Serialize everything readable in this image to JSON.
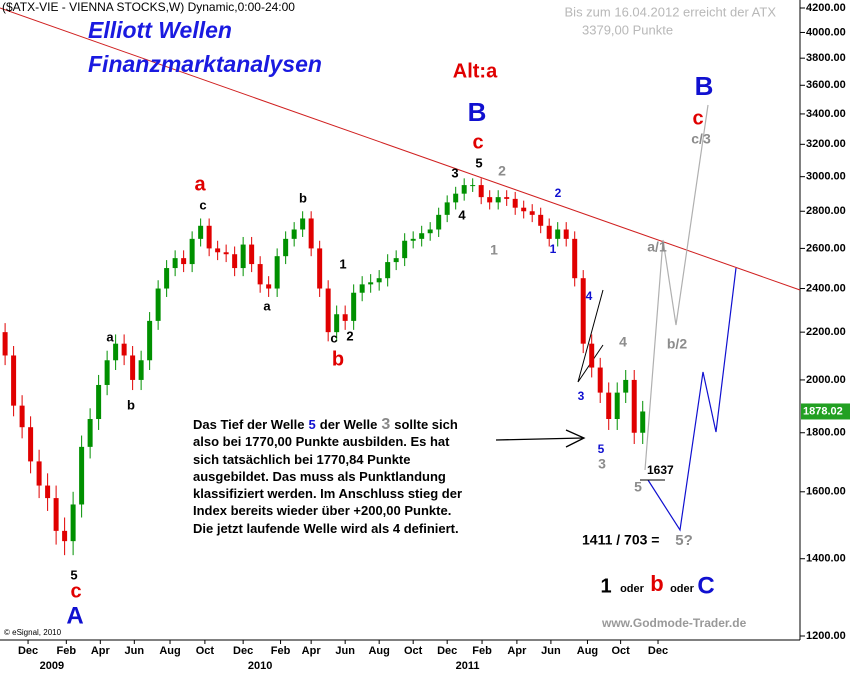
{
  "chart_data": {
    "type": "candlestick",
    "title": "($ATX-VIE - VIENNA STOCKS,W) Dynamic,0:00-24:00",
    "brand": [
      "Elliott Wellen",
      "Finanzmarktanalysen"
    ],
    "forecast_note": [
      "Bis zum 16.04.2012 erreicht der ATX",
      "3379,00 Punkte"
    ],
    "open": [
      2200,
      2100,
      1900,
      1820,
      1700,
      1620,
      1580,
      1480,
      1450,
      1560,
      1750,
      1850,
      1980,
      2080,
      2150,
      2100,
      2000,
      2080,
      2250,
      2400,
      2500,
      2550,
      2520,
      2650,
      2720,
      2600,
      2580,
      2570,
      2500,
      2620,
      2520,
      2420,
      2400,
      2560,
      2650,
      2700,
      2760,
      2600,
      2400,
      2200,
      2280,
      2250,
      2380,
      2420,
      2430,
      2450,
      2530,
      2550,
      2640,
      2650,
      2680,
      2700,
      2780,
      2850,
      2900,
      2950,
      2950,
      2880,
      2850,
      2880,
      2870,
      2820,
      2800,
      2780,
      2720,
      2650,
      2700,
      2650,
      2450,
      2150,
      2050,
      1950,
      1850,
      1950,
      2000,
      1800
    ],
    "high": [
      2240,
      2140,
      1940,
      1860,
      1740,
      1660,
      1620,
      1520,
      1600,
      1790,
      1890,
      2020,
      2120,
      2190,
      2190,
      2140,
      2120,
      2290,
      2440,
      2540,
      2590,
      2590,
      2690,
      2760,
      2760,
      2640,
      2620,
      2610,
      2660,
      2660,
      2560,
      2460,
      2600,
      2690,
      2740,
      2800,
      2800,
      2640,
      2440,
      2320,
      2320,
      2420,
      2460,
      2470,
      2490,
      2570,
      2590,
      2680,
      2690,
      2720,
      2740,
      2820,
      2890,
      2940,
      2990,
      2990,
      2990,
      2920,
      2920,
      2920,
      2910,
      2860,
      2840,
      2820,
      2760,
      2740,
      2740,
      2690,
      2490,
      2190,
      2090,
      1990,
      1990,
      2040,
      2040,
      1918
    ],
    "low": [
      2060,
      1860,
      1780,
      1660,
      1580,
      1540,
      1440,
      1410,
      1410,
      1520,
      1710,
      1810,
      1940,
      2040,
      2060,
      1960,
      1960,
      2040,
      2210,
      2360,
      2460,
      2480,
      2480,
      2610,
      2560,
      2540,
      2530,
      2460,
      2460,
      2480,
      2380,
      2360,
      2360,
      2520,
      2610,
      2660,
      2560,
      2360,
      2160,
      2160,
      2210,
      2210,
      2340,
      2380,
      2390,
      2410,
      2490,
      2510,
      2600,
      2610,
      2640,
      2660,
      2740,
      2810,
      2860,
      2910,
      2840,
      2810,
      2810,
      2830,
      2780,
      2760,
      2740,
      2680,
      2610,
      2610,
      2610,
      2410,
      2110,
      2010,
      1910,
      1810,
      1810,
      1910,
      1760,
      1760
    ],
    "close": [
      2100,
      1900,
      1820,
      1700,
      1620,
      1580,
      1480,
      1450,
      1560,
      1750,
      1850,
      1980,
      2080,
      2150,
      2100,
      2000,
      2080,
      2250,
      2400,
      2500,
      2550,
      2520,
      2650,
      2720,
      2600,
      2580,
      2570,
      2500,
      2620,
      2520,
      2420,
      2400,
      2560,
      2650,
      2700,
      2760,
      2600,
      2400,
      2200,
      2280,
      2250,
      2380,
      2420,
      2430,
      2450,
      2530,
      2550,
      2640,
      2650,
      2680,
      2700,
      2780,
      2850,
      2900,
      2950,
      2950,
      2880,
      2850,
      2880,
      2870,
      2820,
      2800,
      2780,
      2720,
      2650,
      2700,
      2650,
      2450,
      2150,
      2050,
      1950,
      1850,
      1950,
      2000,
      1800,
      1878.02
    ],
    "up_color": "#009000",
    "down_color": "#e00000",
    "log_scale": true,
    "grid": false,
    "xlim": [
      -0.6,
      93.5
    ],
    "xticks": [
      {
        "value": 2.7,
        "label": "Dec"
      },
      {
        "value": 7.2,
        "label": "Feb"
      },
      {
        "value": 11.2,
        "label": "Apr"
      },
      {
        "value": 15.2,
        "label": "Jun"
      },
      {
        "value": 19.4,
        "label": "Aug"
      },
      {
        "value": 23.5,
        "label": "Oct"
      },
      {
        "value": 28,
        "label": "Dec"
      },
      {
        "value": 32.4,
        "label": "Feb"
      },
      {
        "value": 36,
        "label": "Apr"
      },
      {
        "value": 40,
        "label": "Jun"
      },
      {
        "value": 44,
        "label": "Aug"
      },
      {
        "value": 48,
        "label": "Oct"
      },
      {
        "value": 52,
        "label": "Dec"
      },
      {
        "value": 56.1,
        "label": "Feb"
      },
      {
        "value": 60.2,
        "label": "Apr"
      },
      {
        "value": 64.2,
        "label": "Jun"
      },
      {
        "value": 68.5,
        "label": "Aug"
      },
      {
        "value": 72.4,
        "label": "Oct"
      },
      {
        "value": 76.8,
        "label": "Dec"
      }
    ],
    "xyears": [
      {
        "value": 5.5,
        "label": "2009"
      },
      {
        "value": 30,
        "label": "2010"
      },
      {
        "value": 54.4,
        "label": "2011"
      }
    ],
    "ylim": [
      1200,
      4200
    ],
    "yticks": [
      {
        "value": 1200,
        "label": "1200.00"
      },
      {
        "value": 1400,
        "label": "1400.00"
      },
      {
        "value": 1600,
        "label": "1600.00"
      },
      {
        "value": 1800,
        "label": "1800.00"
      },
      {
        "value": 2000,
        "label": "2000.00"
      },
      {
        "value": 2200,
        "label": "2200.00"
      },
      {
        "value": 2400,
        "label": "2400.00"
      },
      {
        "value": 2600,
        "label": "2600.00"
      },
      {
        "value": 2800,
        "label": "2800.00"
      },
      {
        "value": 3000,
        "label": "3000.00"
      },
      {
        "value": 3200,
        "label": "3200.00"
      },
      {
        "value": 3400,
        "label": "3400.00"
      },
      {
        "value": 3600,
        "label": "3600.00"
      },
      {
        "value": 3800,
        "label": "3800.00"
      },
      {
        "value": 4000,
        "label": "4000.00"
      },
      {
        "value": 4200,
        "label": "4200.00"
      }
    ],
    "annotations": [
      "5",
      "c",
      "A",
      "a",
      "b",
      "a",
      "c",
      "b",
      "a",
      "1",
      "c",
      "b",
      "2",
      "Alt:a",
      "B",
      "c",
      "3",
      "5",
      "4",
      "2",
      "1",
      "2",
      "1",
      "4",
      "3",
      "5",
      "3",
      "4",
      "5",
      "1637",
      "a/1",
      "b/2",
      "c/3",
      "c",
      "B",
      "1411 / 703 =",
      "5?",
      "1",
      "oder",
      "b",
      "oder",
      "C",
      "www.Godmode-Trader.de",
      "© eSignal, 2010"
    ],
    "note_first": [
      "Das Tief der Welle",
      "5",
      "der Welle",
      "3",
      "sollte sich"
    ],
    "note_lines": [
      "also bei 1770,00 Punkte ausbilden. Es hat",
      "sich tatsächlich bei 1770,84 Punkte",
      "ausgebildet. Das muss als Punktlandung",
      "klassifiziert werden. Im Anschluss stieg der",
      "Index bereits wieder über +200,00 Punkte.",
      "Die jetzt laufende Welle wird als 4 definiert."
    ]
  }
}
